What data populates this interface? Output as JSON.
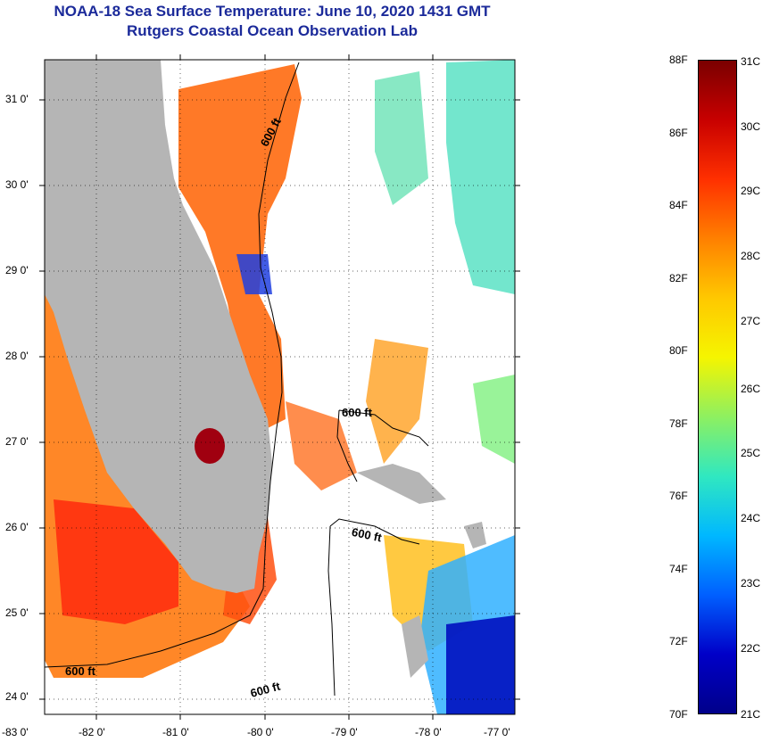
{
  "header": {
    "title": "NOAA-18 Sea Surface Temperature:  June 10, 2020 1431 GMT",
    "subtitle": "Rutgers Coastal Ocean Observation Lab"
  },
  "map": {
    "lon_ticks": [
      "-83 0'",
      "-82 0'",
      "-81 0'",
      "-80 0'",
      "-79 0'",
      "-78 0'",
      "-77 0'"
    ],
    "lat_ticks": [
      "31 0'",
      "30 0'",
      "29 0'",
      "28 0'",
      "27 0'",
      "26 0'",
      "25 0'",
      "24 0'"
    ],
    "contour_labels": [
      "600 ft",
      "600 ft",
      "600 ft",
      "600 ft",
      "600 ft"
    ],
    "land_color": "#b5b5b5",
    "no_data_color": "#ffffff"
  },
  "colorbar": {
    "f_labels": [
      "88F",
      "86F",
      "84F",
      "82F",
      "80F",
      "78F",
      "76F",
      "74F",
      "72F",
      "70F"
    ],
    "c_labels": [
      "31C",
      "30C",
      "29C",
      "28C",
      "27C",
      "26C",
      "25C",
      "24C",
      "23C",
      "22C",
      "21C"
    ],
    "colors": [
      "#7a0000",
      "#c80000",
      "#ff3000",
      "#ff8000",
      "#ffc800",
      "#f5f500",
      "#8ef060",
      "#30e8c0",
      "#00b8ff",
      "#0060ff",
      "#0000c8",
      "#00008a"
    ]
  }
}
